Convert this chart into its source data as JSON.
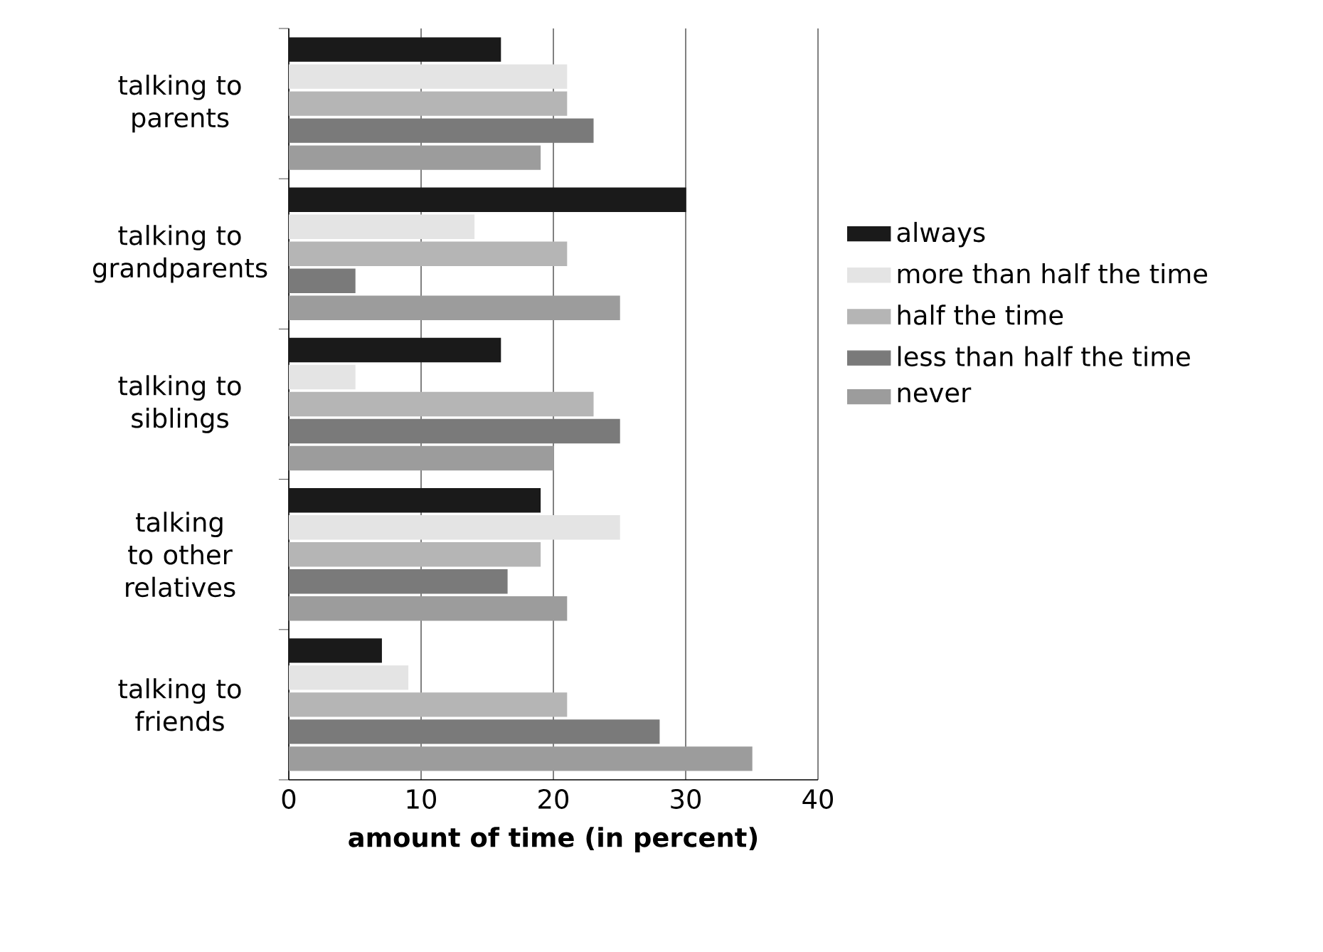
{
  "chart_data": {
    "type": "bar",
    "orientation": "horizontal",
    "xlabel": "amount of time (in percent)",
    "categories": [
      "talking to parents",
      "talking to grandparents",
      "talking to siblings",
      "talking to other relatives",
      "talking to friends"
    ],
    "series": [
      {
        "name": "always",
        "color": "#1a1a1a",
        "values": [
          16,
          30,
          16,
          19,
          7
        ]
      },
      {
        "name": "more than half the time",
        "color": "#e4e4e4",
        "values": [
          21,
          14,
          5,
          25,
          9
        ]
      },
      {
        "name": "half the time",
        "color": "#b5b5b5",
        "values": [
          21,
          21,
          23,
          19,
          21
        ]
      },
      {
        "name": "less than half the time",
        "color": "#7a7a7a",
        "values": [
          23,
          5,
          25,
          16.5,
          28
        ]
      },
      {
        "name": "never",
        "color": "#9c9c9c",
        "values": [
          19,
          25,
          20,
          21,
          35
        ]
      }
    ],
    "xlim": [
      0,
      40
    ],
    "xticks": [
      0,
      10,
      20,
      30,
      40
    ],
    "grid": "x",
    "legend": "right"
  }
}
